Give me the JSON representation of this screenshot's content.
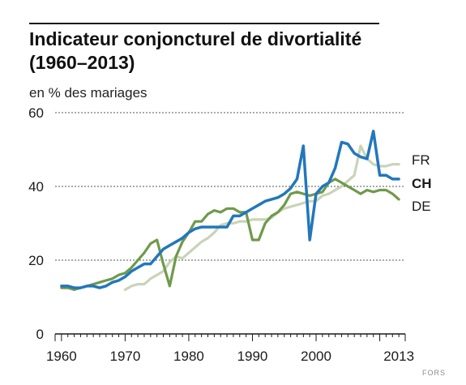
{
  "header": {
    "title_line1": "Indicateur conjoncturel de divortialité",
    "title_line2": "(1960–2013)",
    "subtitle": "en % des mariages"
  },
  "credit": "FORS",
  "chart_data": {
    "type": "line",
    "title": "Indicateur conjoncturel de divortialité (1960–2013)",
    "ylabel": "en % des mariages",
    "xlim": [
      1959,
      2014
    ],
    "ylim": [
      0,
      60
    ],
    "yticks": [
      0,
      20,
      40,
      60
    ],
    "xtick_labels": [
      {
        "value": 1960,
        "label": "1960"
      },
      {
        "value": 1970,
        "label": "1970"
      },
      {
        "value": 1980,
        "label": "1980"
      },
      {
        "value": 1990,
        "label": "1990"
      },
      {
        "value": 2000,
        "label": "2000"
      },
      {
        "value": 2013,
        "label": "2013"
      }
    ],
    "grid": "horizontal dashed at 20, 40, 60",
    "legend": "labels at right end of lines",
    "series": [
      {
        "name": "FR",
        "color": "#c9d4b8",
        "x": [
          1970,
          1971,
          1972,
          1973,
          1974,
          1975,
          1976,
          1977,
          1978,
          1979,
          1980,
          1981,
          1982,
          1983,
          1984,
          1985,
          1986,
          1987,
          1988,
          1989,
          1990,
          1991,
          1992,
          1993,
          1994,
          1995,
          1996,
          1997,
          1998,
          1999,
          2000,
          2001,
          2002,
          2003,
          2004,
          2005,
          2006,
          2007,
          2008,
          2009,
          2010,
          2011,
          2012,
          2013
        ],
        "values": [
          12,
          13,
          13.5,
          13.5,
          15,
          16,
          17,
          19.5,
          21,
          20.5,
          22,
          23.5,
          25,
          26,
          27.5,
          29.5,
          30,
          30,
          30.5,
          30.5,
          31,
          31,
          31,
          31.5,
          33,
          34,
          34.5,
          35,
          35.5,
          36,
          36,
          37.5,
          38,
          39,
          40,
          41.5,
          43,
          51,
          47.5,
          46,
          45.5,
          45.5,
          46,
          46
        ]
      },
      {
        "name": "CH",
        "color": "#2277bb",
        "x": [
          1960,
          1961,
          1962,
          1963,
          1964,
          1965,
          1966,
          1967,
          1968,
          1969,
          1970,
          1971,
          1972,
          1973,
          1974,
          1975,
          1976,
          1977,
          1978,
          1979,
          1980,
          1981,
          1982,
          1983,
          1984,
          1985,
          1986,
          1987,
          1988,
          1989,
          1990,
          1991,
          1992,
          1993,
          1994,
          1995,
          1996,
          1997,
          1998,
          1999,
          2000,
          2001,
          2002,
          2003,
          2004,
          2005,
          2006,
          2007,
          2008,
          2009,
          2010,
          2011,
          2012,
          2013
        ],
        "values": [
          13,
          13,
          12.5,
          12.5,
          13,
          13,
          12.5,
          13,
          14,
          14.5,
          15.5,
          17,
          18,
          19,
          19,
          21,
          23,
          24,
          25,
          26,
          27.5,
          28.5,
          29,
          29,
          29,
          29,
          29,
          32,
          32,
          33,
          34,
          35,
          36,
          36.5,
          37,
          38,
          39.5,
          42,
          51,
          25.5,
          38,
          40,
          41,
          45,
          52,
          51.5,
          49,
          48,
          47.5,
          55,
          43,
          43,
          42,
          42
        ]
      },
      {
        "name": "DE",
        "color": "#6e9a4a",
        "x": [
          1960,
          1961,
          1962,
          1963,
          1964,
          1965,
          1966,
          1967,
          1968,
          1969,
          1970,
          1971,
          1972,
          1973,
          1974,
          1975,
          1976,
          1977,
          1978,
          1979,
          1980,
          1981,
          1982,
          1983,
          1984,
          1985,
          1986,
          1987,
          1988,
          1989,
          1990,
          1991,
          1992,
          1993,
          1994,
          1995,
          1996,
          1997,
          1998,
          1999,
          2000,
          2001,
          2002,
          2003,
          2004,
          2005,
          2006,
          2007,
          2008,
          2009,
          2010,
          2011,
          2012,
          2013
        ],
        "values": [
          12.5,
          12.5,
          12,
          12.5,
          13,
          13.5,
          14,
          14.5,
          15,
          16,
          16.5,
          18,
          20,
          22,
          24.5,
          25.5,
          19,
          13,
          21,
          25,
          27.5,
          30.5,
          30.5,
          32.5,
          33.5,
          33,
          34,
          34,
          33,
          33,
          25.5,
          25.5,
          30,
          32,
          33,
          35,
          38,
          38.5,
          38,
          37.5,
          38,
          38.5,
          41,
          42,
          41,
          40,
          39,
          38,
          39,
          38.5,
          39,
          39,
          38,
          36.5
        ]
      }
    ]
  }
}
